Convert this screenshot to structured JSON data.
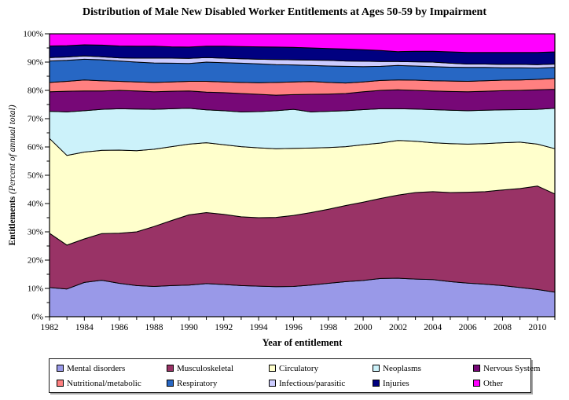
{
  "figure": {
    "title": "Distribution of Male New Disabled Worker Entitlements at Ages 50-59 by Impairment",
    "xlabel": "Year of entitlement",
    "ylabel": {
      "bold": "Entitlements",
      "italic": " (Percent of annual total)"
    }
  },
  "chart_data": {
    "type": "area",
    "stacked": true,
    "title": "Distribution of Male New Disabled Worker Entitlements at Ages 50-59 by Impairment",
    "xlabel": "Year of entitlement",
    "ylabel": "Entitlements (Percent of annual total)",
    "x": [
      1982,
      1983,
      1984,
      1985,
      1986,
      1987,
      1988,
      1989,
      1990,
      1991,
      1992,
      1993,
      1994,
      1995,
      1996,
      1997,
      1998,
      1999,
      2000,
      2001,
      2002,
      2003,
      2004,
      2005,
      2006,
      2007,
      2008,
      2009,
      2010,
      2011
    ],
    "x_tick_labels": [
      "1982",
      "1984",
      "1986",
      "1988",
      "1990",
      "1992",
      "1994",
      "1996",
      "1998",
      "2000",
      "2002",
      "2004",
      "2006",
      "2008",
      "2010"
    ],
    "y_tick_labels": [
      "0%",
      "10%",
      "20%",
      "30%",
      "40%",
      "50%",
      "60%",
      "70%",
      "80%",
      "90%",
      "100%"
    ],
    "ylim": [
      0,
      100
    ],
    "y_major_step": 10,
    "y_minor_step": 5,
    "grid": false,
    "legend_position": "bottom",
    "outline_color": "#000000",
    "series": [
      {
        "name": "Mental disorders",
        "color": "#9999E8",
        "values": [
          10.3,
          9.8,
          12.1,
          12.9,
          11.8,
          11.0,
          10.7,
          11.0,
          11.2,
          11.7,
          11.4,
          11.0,
          10.8,
          10.6,
          10.7,
          11.2,
          11.8,
          12.4,
          12.8,
          13.5,
          13.6,
          13.3,
          13.1,
          12.4,
          11.9,
          11.5,
          11.0,
          10.3,
          9.6,
          8.7
        ]
      },
      {
        "name": "Musculoskeletal",
        "color": "#993366",
        "values": [
          19.2,
          15.5,
          15.4,
          16.5,
          17.7,
          19.0,
          21.2,
          23.0,
          24.8,
          25.1,
          24.8,
          24.3,
          24.2,
          24.5,
          25.1,
          25.6,
          26.2,
          26.9,
          27.7,
          28.3,
          29.4,
          30.6,
          31.1,
          31.5,
          32.1,
          32.7,
          33.8,
          35.0,
          36.6,
          34.7
        ]
      },
      {
        "name": "Circulatory",
        "color": "#FFFFCC",
        "values": [
          33.5,
          31.7,
          30.7,
          29.4,
          29.4,
          28.7,
          27.3,
          26.1,
          25.0,
          24.7,
          24.6,
          24.8,
          24.7,
          24.3,
          23.7,
          22.8,
          21.8,
          20.8,
          20.3,
          19.6,
          19.3,
          18.1,
          17.3,
          17.3,
          17.0,
          17.0,
          16.7,
          16.4,
          14.8,
          16.0
        ]
      },
      {
        "name": "Neoplasms",
        "color": "#CCF2FA",
        "values": [
          9.6,
          15.4,
          14.6,
          14.5,
          14.6,
          14.7,
          14.1,
          13.4,
          12.7,
          11.6,
          12.0,
          12.3,
          12.8,
          13.4,
          13.8,
          12.8,
          12.8,
          12.7,
          12.4,
          12.1,
          11.2,
          11.4,
          11.7,
          11.8,
          11.8,
          11.8,
          11.6,
          11.5,
          12.3,
          14.3
        ]
      },
      {
        "name": "Nervous System",
        "color": "#770877",
        "values": [
          6.9,
          7.3,
          7.0,
          6.5,
          6.5,
          6.4,
          6.2,
          6.2,
          6.1,
          6.3,
          6.4,
          6.5,
          6.1,
          5.5,
          5.2,
          6.2,
          6.1,
          6.1,
          6.3,
          6.5,
          6.7,
          6.6,
          6.6,
          6.6,
          6.7,
          6.7,
          6.8,
          6.8,
          6.9,
          6.7
        ]
      },
      {
        "name": "Nutritional/metabolic",
        "color": "#FF8080",
        "values": [
          3.3,
          3.5,
          3.9,
          3.6,
          3.2,
          3.2,
          3.3,
          3.3,
          3.4,
          3.8,
          3.8,
          3.9,
          4.1,
          4.5,
          4.5,
          4.5,
          4.1,
          3.7,
          3.5,
          3.5,
          3.5,
          3.6,
          3.6,
          3.7,
          3.7,
          3.7,
          3.7,
          3.7,
          3.7,
          3.8
        ]
      },
      {
        "name": "Respiratory",
        "color": "#2767C4",
        "values": [
          7.6,
          7.4,
          7.3,
          7.4,
          7.2,
          7.0,
          6.9,
          6.6,
          6.3,
          6.8,
          6.8,
          6.8,
          6.7,
          6.3,
          6.0,
          5.7,
          5.8,
          5.9,
          5.4,
          5.0,
          5.1,
          5.0,
          5.0,
          4.9,
          4.9,
          4.7,
          4.4,
          4.3,
          4.0,
          3.9
        ]
      },
      {
        "name": "Infectious/parasitic",
        "color": "#CCCCFF",
        "values": [
          1.2,
          1.2,
          1.2,
          1.1,
          1.1,
          1.4,
          1.7,
          1.8,
          1.8,
          1.6,
          1.6,
          1.6,
          1.6,
          1.8,
          1.8,
          1.9,
          2.0,
          1.9,
          1.9,
          1.7,
          1.4,
          1.5,
          1.6,
          1.4,
          1.2,
          1.2,
          1.2,
          1.2,
          1.2,
          1.2
        ]
      },
      {
        "name": "Injuries",
        "color": "#000080",
        "values": [
          4.1,
          4.0,
          3.9,
          4.1,
          4.2,
          4.2,
          4.2,
          4.0,
          4.0,
          4.0,
          4.2,
          4.3,
          4.4,
          4.4,
          4.4,
          4.3,
          4.2,
          4.2,
          4.1,
          3.9,
          3.5,
          3.7,
          3.8,
          4.0,
          4.1,
          4.1,
          4.2,
          4.2,
          4.3,
          4.3
        ]
      },
      {
        "name": "Other",
        "color": "#FF00FF",
        "values": [
          4.3,
          4.2,
          3.9,
          4.0,
          4.3,
          4.4,
          4.4,
          4.6,
          4.7,
          4.4,
          4.4,
          4.5,
          4.6,
          4.7,
          4.8,
          5.0,
          5.2,
          5.4,
          5.6,
          5.9,
          6.3,
          6.2,
          6.2,
          6.4,
          6.6,
          6.6,
          6.6,
          6.6,
          6.6,
          6.4
        ]
      }
    ]
  }
}
